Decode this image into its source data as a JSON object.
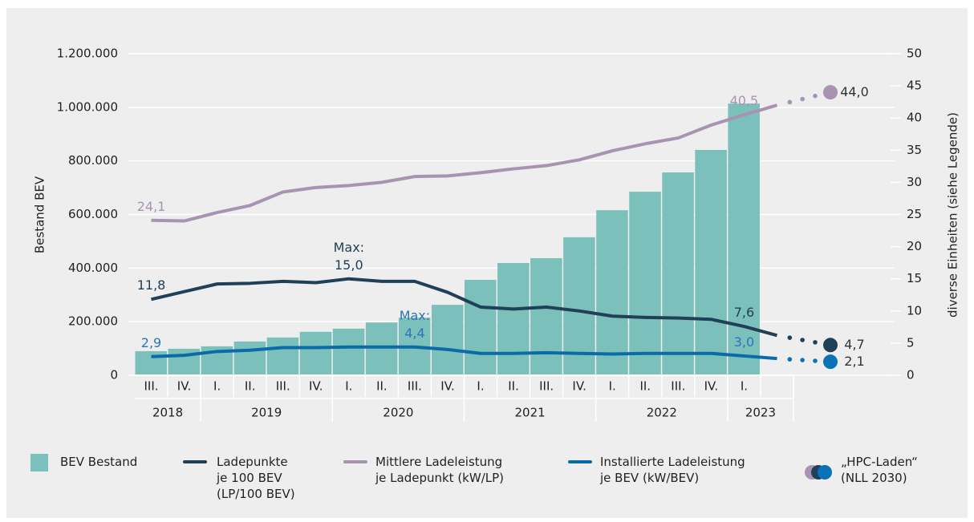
{
  "chart_data": {
    "type": "bar",
    "categories": [
      "III.",
      "IV.",
      "I.",
      "II.",
      "III.",
      "IV.",
      "I.",
      "II.",
      "III.",
      "IV.",
      "I.",
      "II.",
      "III.",
      "IV.",
      "I.",
      "II.",
      "III.",
      "IV.",
      "I.",
      null
    ],
    "groups": [
      {
        "label": "2018",
        "span": 2
      },
      {
        "label": "2019",
        "span": 4
      },
      {
        "label": "2020",
        "span": 4
      },
      {
        "label": "2021",
        "span": 4
      },
      {
        "label": "2022",
        "span": 4
      },
      {
        "label": "2023",
        "span": 2
      }
    ],
    "ylabel": "Bestand BEV",
    "y2label": "diverse Einheiten (siehe Legende)",
    "ylim": [
      0,
      1200000
    ],
    "yticks": [
      0,
      {
        "value": 200000,
        "label": "200.000"
      },
      {
        "value": 400000,
        "label": "400.000"
      },
      {
        "value": 600000,
        "label": "600.000"
      },
      {
        "value": 800000,
        "label": "800.000"
      },
      {
        "value": 1000000,
        "label": "1.000.000"
      },
      {
        "value": 1200000,
        "label": "1.200.000"
      }
    ],
    "y2lim": [
      0,
      50
    ],
    "y2ticks": [
      0,
      5,
      10,
      15,
      20,
      25,
      30,
      35,
      40,
      45,
      50
    ],
    "grid": true,
    "series": [
      {
        "name": "BEV Bestand",
        "type": "bar",
        "color": "#7bc0ba",
        "values": [
          90000,
          99000,
          108000,
          126000,
          141000,
          162000,
          174000,
          197000,
          215000,
          263000,
          356000,
          419000,
          437000,
          515000,
          616000,
          685000,
          757000,
          841000,
          1014000,
          null
        ]
      },
      {
        "name": "Ladepunkte\nje 100 BEV\n(LP/100 BEV)",
        "type": "line",
        "axis": "y2",
        "color": "#1f4057",
        "label_color": "#1f4057",
        "values": [
          11.8,
          13.0,
          14.2,
          14.3,
          14.6,
          14.4,
          15.0,
          14.6,
          14.6,
          12.9,
          10.6,
          10.3,
          10.6,
          10.0,
          9.2,
          9.0,
          8.9,
          8.7,
          7.6,
          6.2
        ],
        "value_labels": [
          "11,8",
          null,
          null,
          null,
          null,
          null,
          "Max:\n15,0",
          null,
          null,
          null,
          null,
          null,
          null,
          null,
          null,
          null,
          null,
          null,
          "7,6",
          null
        ],
        "target": 4.7,
        "target_label": "4,7",
        "target_color": "#1f4057"
      },
      {
        "name": "Mittlere Ladeleistung\nje Ladepunkt (kW/LP)",
        "type": "line",
        "axis": "y2",
        "color": "#a893b0",
        "label_color": "#a893b0",
        "values": [
          24.1,
          24.0,
          25.3,
          26.4,
          28.5,
          29.2,
          29.5,
          30.0,
          30.9,
          31.0,
          31.5,
          32.1,
          32.6,
          33.5,
          34.9,
          36.0,
          36.9,
          38.9,
          40.5,
          42.0
        ],
        "value_labels": [
          "24,1",
          null,
          null,
          null,
          null,
          null,
          null,
          null,
          null,
          null,
          null,
          null,
          null,
          null,
          null,
          null,
          null,
          null,
          "40,5",
          null
        ],
        "target": 44.0,
        "target_label": "44,0",
        "target_color": "#a893b0"
      },
      {
        "name": "Installierte Ladeleistung\nje BEV (kW/BEV)",
        "type": "line",
        "axis": "y2",
        "color": "#0b6aa8",
        "label_color": "#2f73b8",
        "values": [
          2.9,
          3.1,
          3.7,
          3.9,
          4.3,
          4.3,
          4.4,
          4.4,
          4.4,
          4.0,
          3.4,
          3.4,
          3.5,
          3.4,
          3.3,
          3.4,
          3.4,
          3.4,
          3.0,
          2.6
        ],
        "value_labels": [
          "2,9",
          null,
          null,
          null,
          null,
          null,
          null,
          null,
          "Max:\n4,4",
          null,
          null,
          null,
          null,
          null,
          null,
          null,
          null,
          null,
          "3,0",
          null
        ],
        "target": 2.1,
        "target_label": "2,1",
        "target_color": "#0a72b8"
      }
    ],
    "target_legend": "„HPC-Laden“\n(NLL 2030)"
  }
}
